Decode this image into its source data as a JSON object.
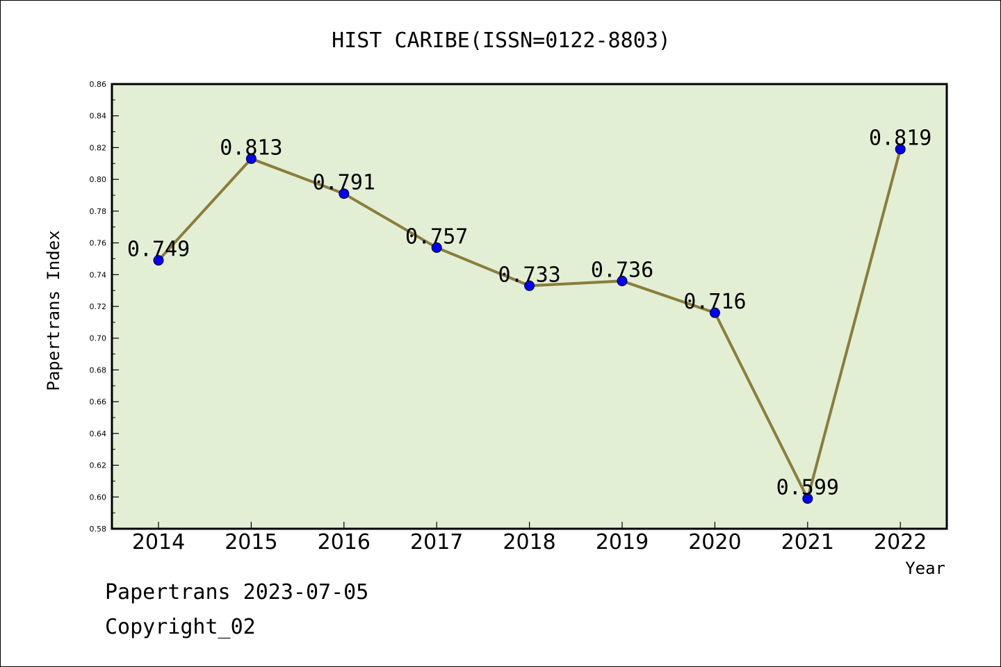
{
  "chart_data": {
    "type": "line",
    "title": "HIST CARIBE(ISSN=0122-8803)",
    "xlabel": "Year",
    "ylabel": "Papertrans Index",
    "categories": [
      "2014",
      "2015",
      "2016",
      "2017",
      "2018",
      "2019",
      "2020",
      "2021",
      "2022"
    ],
    "values": [
      0.749,
      0.813,
      0.791,
      0.757,
      0.733,
      0.736,
      0.716,
      0.599,
      0.819
    ],
    "data_labels": [
      "0.749",
      "0.813",
      "0.791",
      "0.757",
      "0.733",
      "0.736",
      "0.716",
      "0.599",
      "0.819"
    ],
    "ylim": [
      0.58,
      0.86
    ],
    "yticks": [
      "0.58",
      "0.60",
      "0.62",
      "0.64",
      "0.66",
      "0.68",
      "0.70",
      "0.72",
      "0.74",
      "0.76",
      "0.78",
      "0.80",
      "0.82",
      "0.84",
      "0.86"
    ],
    "grid": false,
    "colors": {
      "plot_background": "#e2efd5",
      "line": "#8b7d3a",
      "marker": "#0000ff"
    }
  },
  "footer": {
    "line1": "Papertrans 2023-07-05",
    "line2": "Copyright_02"
  }
}
